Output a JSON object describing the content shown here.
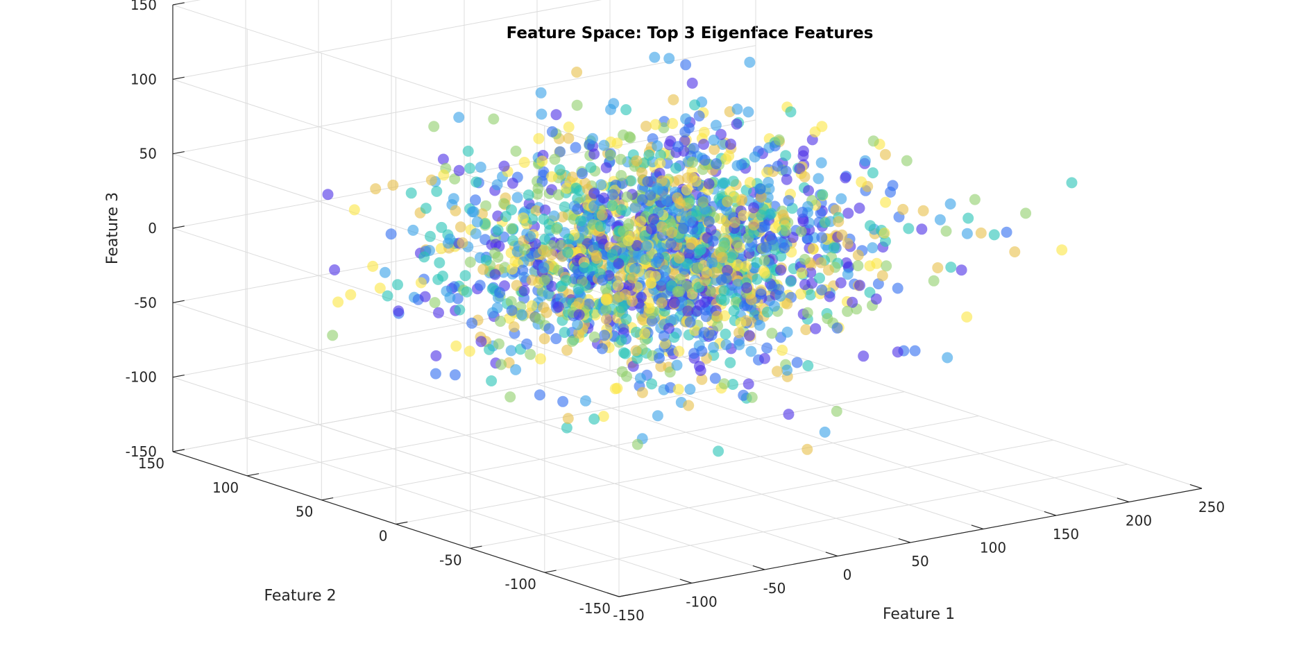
{
  "chart_data": {
    "type": "scatter",
    "subtype": "3d",
    "title": "Feature Space: Top 3 Eigenface Features",
    "xlabel": "Feature 1",
    "ylabel": "Feature 2",
    "zlabel": "Feature 3",
    "xlim": [
      -150,
      250
    ],
    "ylim": [
      -150,
      150
    ],
    "zlim": [
      -150,
      150
    ],
    "x_ticks": [
      "-150",
      "-100",
      "-50",
      "0",
      "50",
      "100",
      "150",
      "200",
      "250"
    ],
    "y_ticks": [
      "-150",
      "-100",
      "-50",
      "0",
      "50",
      "100",
      "150"
    ],
    "z_ticks": [
      "-150",
      "-100",
      "-50",
      "0",
      "50",
      "100",
      "150"
    ],
    "grid": true,
    "marker": "filled-circle",
    "marker_alpha": 0.6,
    "colormap": [
      "#4b2ee6",
      "#2f6cf0",
      "#36a0e8",
      "#27c3b6",
      "#8fcf6a",
      "#e8c04a",
      "#fbe642"
    ],
    "point_count": 2000,
    "distribution": {
      "feature_1": {
        "mean": 30,
        "std": 60
      },
      "feature_2": {
        "mean": 0,
        "std": 40
      },
      "feature_3": {
        "mean": 0,
        "std": 35
      }
    },
    "sample_outliers": [
      {
        "x": -40,
        "y": 0,
        "z": 105
      },
      {
        "x": 230,
        "y": -30,
        "z": -15
      },
      {
        "x": -120,
        "y": 40,
        "z": -10
      },
      {
        "x": 150,
        "y": 120,
        "z": 70
      },
      {
        "x": 20,
        "y": -110,
        "z": -95
      }
    ]
  }
}
